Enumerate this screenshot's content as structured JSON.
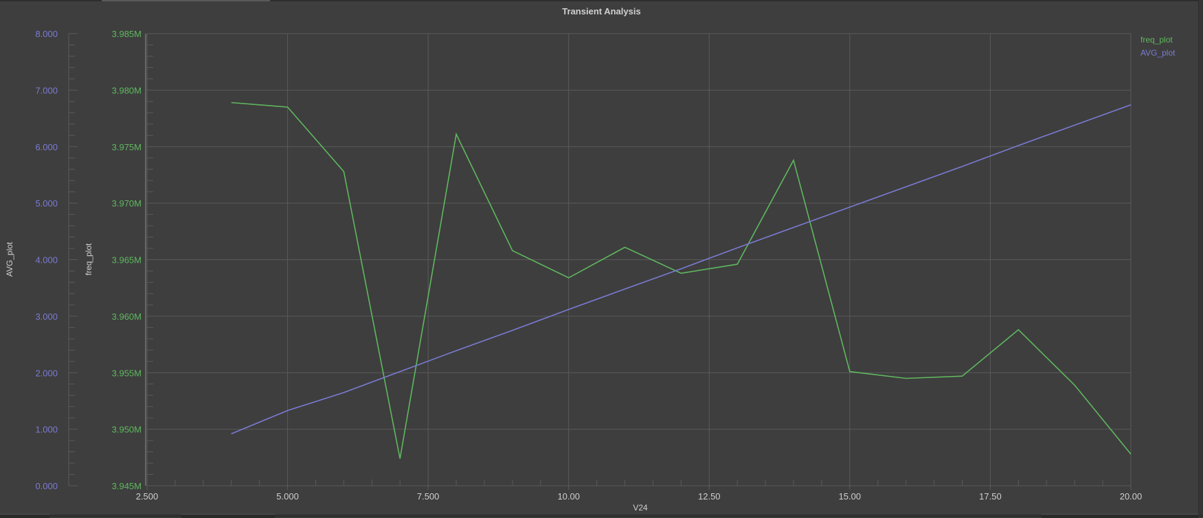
{
  "window": {
    "title": "Transient Analysis"
  },
  "legend": {
    "items": [
      {
        "label": "freq_plot",
        "color": "#5fb85f"
      },
      {
        "label": "AVG_plot",
        "color": "#7b7bd6"
      }
    ]
  },
  "axes": {
    "x_label": "V24",
    "y_left_outer_label": "AVG_plot",
    "y_left_inner_label": "freq_plot",
    "x_ticks": [
      "2.500",
      "5.000",
      "7.500",
      "10.00",
      "12.50",
      "15.00",
      "17.50",
      "20.00"
    ],
    "avg_ticks": [
      "0.000",
      "1.000",
      "2.000",
      "3.000",
      "4.000",
      "5.000",
      "6.000",
      "7.000",
      "8.000"
    ],
    "freq_ticks": [
      "3.945M",
      "3.950M",
      "3.955M",
      "3.960M",
      "3.965M",
      "3.970M",
      "3.975M",
      "3.980M",
      "3.985M"
    ]
  },
  "colors": {
    "background": "#3e3e3e",
    "grid": "#5a5a5a",
    "freq": "#5fb85f",
    "avg": "#7b7bd6"
  },
  "chart_data": {
    "type": "line",
    "title": "Transient Analysis",
    "xlabel": "V24",
    "ylabel": "freq_plot / AVG_plot",
    "xlim": [
      2.5,
      20.0
    ],
    "grid": true,
    "legend_position": "top-right",
    "x": [
      4,
      5,
      6,
      7,
      8,
      9,
      10,
      11,
      12,
      13,
      14,
      15,
      16,
      17,
      18,
      19,
      20
    ],
    "series": [
      {
        "name": "freq_plot",
        "axis": "left-inner",
        "ylim": [
          3945000,
          3985000
        ],
        "values": [
          3978900,
          3978500,
          3972800,
          3947400,
          3976100,
          3965800,
          3963400,
          3966100,
          3963800,
          3964600,
          3973800,
          3955100,
          3954500,
          3954700,
          3958800,
          3953900,
          3947800
        ]
      },
      {
        "name": "AVG_plot",
        "axis": "left-outer",
        "ylim": [
          0,
          8
        ],
        "values": [
          0.92,
          1.33,
          1.65,
          2.02,
          2.39,
          2.75,
          3.12,
          3.48,
          3.84,
          4.21,
          4.57,
          4.93,
          5.29,
          5.65,
          6.02,
          6.38,
          6.74
        ]
      }
    ]
  }
}
